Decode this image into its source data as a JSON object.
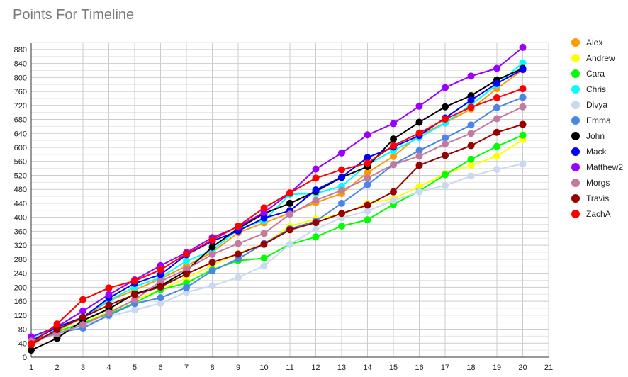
{
  "chart_data": {
    "type": "line",
    "title": "Points For Timeline",
    "xlabel": "",
    "ylabel": "",
    "xlim": [
      1,
      21
    ],
    "ylim": [
      0,
      900
    ],
    "xticks": [
      1,
      2,
      3,
      4,
      5,
      6,
      7,
      8,
      9,
      10,
      11,
      12,
      13,
      14,
      15,
      16,
      17,
      18,
      19,
      20,
      21
    ],
    "yticks": [
      0,
      40,
      80,
      120,
      160,
      200,
      240,
      280,
      320,
      360,
      400,
      440,
      480,
      520,
      560,
      600,
      640,
      680,
      720,
      760,
      800,
      840,
      880
    ],
    "grid": true,
    "legend_position": "right",
    "x": [
      1,
      2,
      3,
      4,
      5,
      6,
      7,
      8,
      9,
      10,
      11,
      12,
      13,
      14,
      15,
      16,
      17,
      18,
      19,
      20
    ],
    "series": [
      {
        "name": "Alex",
        "color": "#ff9900",
        "values": [
          35,
          76,
          112,
          161,
          192,
          224,
          261,
          300,
          356,
          384,
          412,
          442,
          468,
          528,
          574,
          635,
          670,
          710,
          768,
          822
        ]
      },
      {
        "name": "Andrew",
        "color": "#ffff00",
        "values": [
          42,
          72,
          99,
          130,
          163,
          193,
          226,
          262,
          296,
          324,
          374,
          395,
          408,
          440,
          453,
          488,
          525,
          548,
          575,
          622
        ]
      },
      {
        "name": "Cara",
        "color": "#00ff00",
        "values": [
          45,
          73,
          98,
          123,
          155,
          193,
          212,
          250,
          276,
          283,
          323,
          344,
          375,
          393,
          437,
          475,
          522,
          566,
          603,
          635
        ]
      },
      {
        "name": "Chris",
        "color": "#00ffff",
        "values": [
          57,
          81,
          115,
          162,
          201,
          228,
          275,
          305,
          366,
          391,
          466,
          468,
          489,
          551,
          591,
          628,
          670,
          722,
          779,
          842
        ]
      },
      {
        "name": "Divya",
        "color": "#c9d9f0",
        "values": [
          47,
          63,
          91,
          117,
          135,
          154,
          186,
          204,
          228,
          261,
          323,
          366,
          399,
          418,
          448,
          473,
          491,
          518,
          537,
          553
        ]
      },
      {
        "name": "Emma",
        "color": "#4a86e8",
        "values": [
          49,
          70,
          83,
          120,
          153,
          170,
          199,
          247,
          281,
          325,
          367,
          389,
          440,
          493,
          551,
          591,
          627,
          664,
          714,
          743
        ]
      },
      {
        "name": "John",
        "color": "#000000",
        "values": [
          20,
          54,
          105,
          138,
          181,
          204,
          247,
          315,
          368,
          411,
          440,
          474,
          514,
          545,
          624,
          672,
          716,
          748,
          793,
          826
        ]
      },
      {
        "name": "Mack",
        "color": "#0000ff",
        "values": [
          46,
          86,
          114,
          169,
          211,
          236,
          293,
          332,
          361,
          398,
          419,
          478,
          515,
          571,
          601,
          634,
          684,
          735,
          783,
          823
        ]
      },
      {
        "name": "Matthew2",
        "color": "#9900ff",
        "values": [
          58,
          87,
          132,
          179,
          221,
          262,
          299,
          342,
          373,
          414,
          469,
          538,
          584,
          636,
          668,
          718,
          771,
          804,
          826,
          886
        ]
      },
      {
        "name": "Morgs",
        "color": "#c27ba0",
        "values": [
          46,
          67,
          93,
          127,
          164,
          217,
          251,
          294,
          325,
          354,
          409,
          449,
          477,
          512,
          551,
          575,
          610,
          640,
          682,
          716
        ]
      },
      {
        "name": "Travis",
        "color": "#990000",
        "values": [
          36,
          79,
          114,
          149,
          179,
          201,
          238,
          271,
          295,
          323,
          364,
          385,
          411,
          435,
          473,
          549,
          577,
          605,
          643,
          666
        ]
      },
      {
        "name": "ZachA",
        "color": "#ff0000",
        "values": [
          38,
          95,
          165,
          198,
          218,
          250,
          295,
          335,
          375,
          427,
          470,
          512,
          536,
          555,
          605,
          641,
          681,
          715,
          742,
          768
        ]
      }
    ]
  }
}
